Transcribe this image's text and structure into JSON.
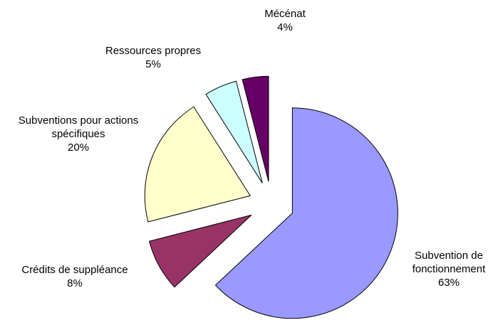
{
  "chart_data": {
    "type": "pie",
    "categories": [
      "Subvention de fonctionnement",
      "Crédits de suppléance",
      "Subventions pour actions spécifiques",
      "Ressources propres",
      "Mécénat"
    ],
    "values": [
      63,
      8,
      20,
      5,
      4
    ],
    "value_labels": [
      "63%",
      "8%",
      "20%",
      "5%",
      "4%"
    ],
    "colors": [
      "#9999ff",
      "#993366",
      "#ffffcc",
      "#ccffff",
      "#660066"
    ]
  }
}
